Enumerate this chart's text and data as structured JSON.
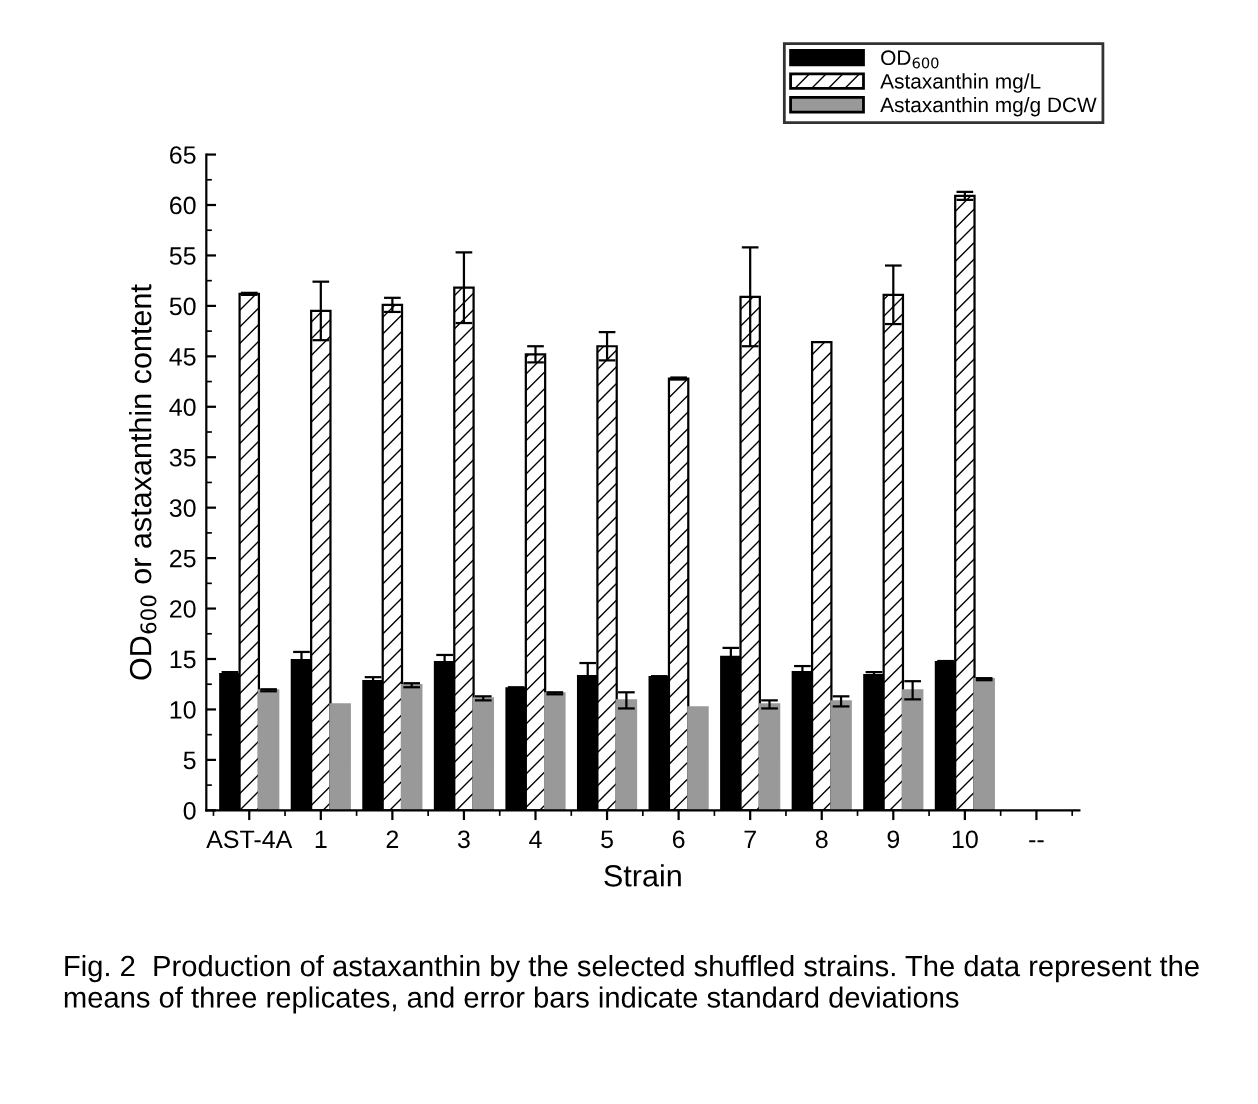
{
  "chart_data": {
    "type": "bar",
    "xlabel": "Strain",
    "ylabel": "OD$_{600}$ or astaxanthin content",
    "categories": [
      "AST-4A",
      "1",
      "2",
      "3",
      "4",
      "5",
      "6",
      "7",
      "8",
      "9",
      "10",
      "--"
    ],
    "series": [
      {
        "name": "OD$_{600}$",
        "color": "#000000",
        "values": [
          13.5,
          14.9,
          12.8,
          14.7,
          12.1,
          13.3,
          13.2,
          15.2,
          13.7,
          13.4,
          14.7,
          null
        ],
        "errors": [
          0.2,
          0.8,
          0.4,
          0.7,
          0.1,
          1.3,
          0.1,
          0.9,
          0.6,
          0.3,
          0.1,
          null
        ]
      },
      {
        "name": "Astaxanthin mg/L",
        "color": "#000000",
        "values": [
          51.2,
          49.5,
          50.1,
          51.8,
          45.2,
          46.0,
          42.8,
          50.9,
          46.4,
          51.1,
          60.9,
          null
        ],
        "errors": [
          0.1,
          2.9,
          0.7,
          3.5,
          0.8,
          1.4,
          0.1,
          4.9,
          null,
          2.9,
          0.4,
          null
        ]
      },
      {
        "name": "Astaxanthin mg/g DCW",
        "color": "#999999",
        "values": [
          11.9,
          10.5,
          12.4,
          11.1,
          11.6,
          10.9,
          10.2,
          10.5,
          10.8,
          11.9,
          13.0,
          null
        ],
        "errors": [
          0.1,
          null,
          0.2,
          0.2,
          0.1,
          0.8,
          null,
          0.4,
          0.5,
          0.9,
          0.1,
          null
        ]
      }
    ],
    "ylim": [
      0,
      65
    ],
    "yticks": [
      0,
      5,
      10,
      15,
      20,
      25,
      30,
      35,
      40,
      45,
      50,
      55,
      60,
      65
    ],
    "grid": false,
    "legend": "top right",
    "annotations": [
      "Fig. 2  Production of astaxanthin by the selected shuffled strains. The data represent the means of three replicates, and error bars indicate standard deviations"
    ]
  }
}
